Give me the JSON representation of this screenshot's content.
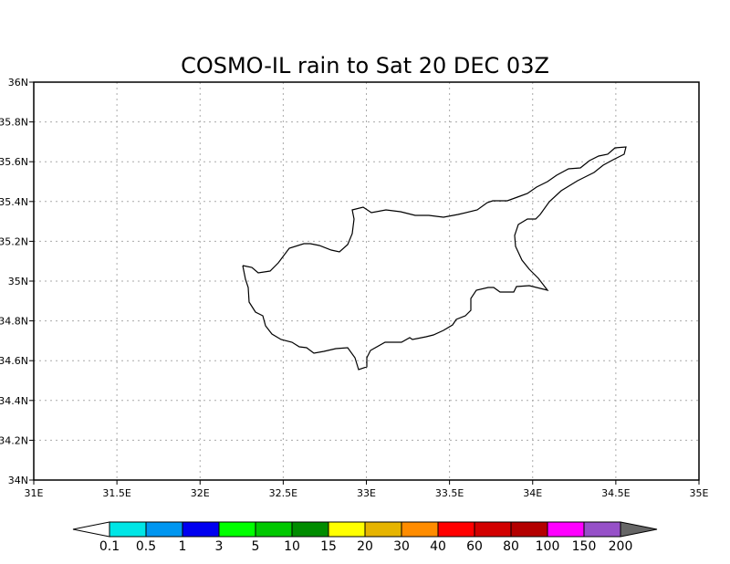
{
  "title": "COSMO-IL rain to Sat 20 DEC 03Z",
  "map": {
    "lon_range": [
      31,
      35
    ],
    "lat_range": [
      34,
      36
    ],
    "lon_ticks": [
      {
        "value": 31,
        "label": "31E"
      },
      {
        "value": 31.5,
        "label": "31.5E"
      },
      {
        "value": 32,
        "label": "32E"
      },
      {
        "value": 32.5,
        "label": "32.5E"
      },
      {
        "value": 33,
        "label": "33E"
      },
      {
        "value": 33.5,
        "label": "33.5E"
      },
      {
        "value": 34,
        "label": "34E"
      },
      {
        "value": 34.5,
        "label": "34.5E"
      },
      {
        "value": 35,
        "label": "35E"
      }
    ],
    "lat_ticks": [
      {
        "value": 34,
        "label": "34N"
      },
      {
        "value": 34.2,
        "label": "34.2N"
      },
      {
        "value": 34.4,
        "label": "34.4N"
      },
      {
        "value": 34.6,
        "label": "34.6N"
      },
      {
        "value": 34.8,
        "label": "34.8N"
      },
      {
        "value": 35,
        "label": "35N"
      },
      {
        "value": 35.2,
        "label": "35.2N"
      },
      {
        "value": 35.4,
        "label": "35.4N"
      },
      {
        "value": 35.6,
        "label": "35.6N"
      },
      {
        "value": 35.8,
        "label": "35.8N"
      },
      {
        "value": 36,
        "label": "36N"
      }
    ],
    "grid": true,
    "coastline": "Cyprus"
  },
  "colorbar": {
    "labels": [
      "0.1",
      "0.5",
      "1",
      "3",
      "5",
      "10",
      "15",
      "20",
      "30",
      "40",
      "60",
      "80",
      "100",
      "150",
      "200"
    ],
    "below_color": "#ffffff",
    "colors": [
      "#00e6e6",
      "#0096f0",
      "#0000f0",
      "#00ff00",
      "#00c800",
      "#008c00",
      "#ffff00",
      "#e6b400",
      "#ff8c00",
      "#ff0000",
      "#d20000",
      "#b40000",
      "#ff00ff",
      "#9650c8"
    ],
    "above_color": "#666666"
  }
}
